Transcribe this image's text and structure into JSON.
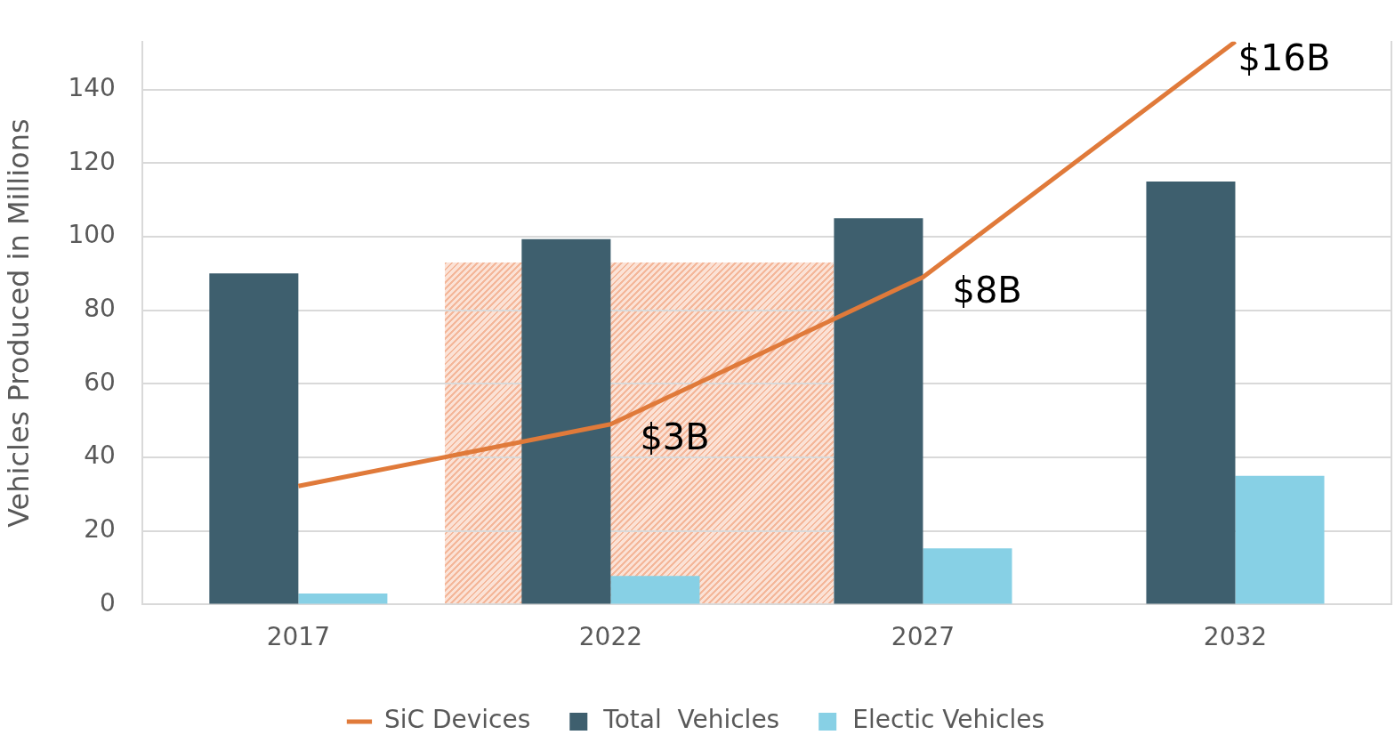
{
  "chart_data": {
    "type": "bar",
    "ylabel": "Vehicles Produced in Millions",
    "categories": [
      "2017",
      "2022",
      "2027",
      "2032"
    ],
    "series": [
      {
        "name": "Total  Vehicles",
        "color": "#3e5f6e",
        "values": [
          90,
          99.3,
          105,
          115
        ]
      },
      {
        "name": "Electic Vehicles",
        "color": "#87d0e5",
        "values": [
          3,
          7.8,
          15.3,
          35
        ]
      },
      {
        "name": "SiC Devices",
        "type": "line",
        "axis": "y2",
        "color": "#e07a3a",
        "values": [
          0.9,
          3,
          8,
          16
        ],
        "value_labels": [
          null,
          "$3B",
          "$8B",
          "$16B"
        ]
      }
    ],
    "ylim": [
      0,
      153
    ],
    "yticks": [
      0,
      20,
      40,
      60,
      80,
      100,
      120,
      140
    ],
    "y2lim": [
      -3.125,
      16
    ],
    "grid": "y",
    "legend": "bottom",
    "marker": "none"
  }
}
